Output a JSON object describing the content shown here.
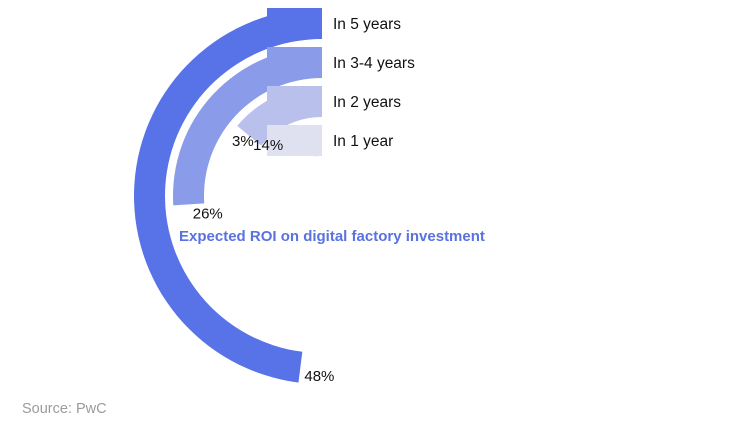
{
  "chart_data": {
    "type": "radial-bar",
    "title": "Expected ROI on digital factory investment",
    "value_unit": "%",
    "categories": [
      "In 5 years",
      "In 3-4 years",
      "In 2 years",
      "In 1 year"
    ],
    "values": [
      48,
      26,
      14,
      3
    ],
    "value_labels": [
      "48%",
      "26%",
      "14%",
      "3%"
    ],
    "colors": [
      "#5872e8",
      "#8a9bea",
      "#b9c0ec",
      "#dfe1f1"
    ],
    "title_color": "#5a72e0"
  },
  "source": "Source: PwC"
}
